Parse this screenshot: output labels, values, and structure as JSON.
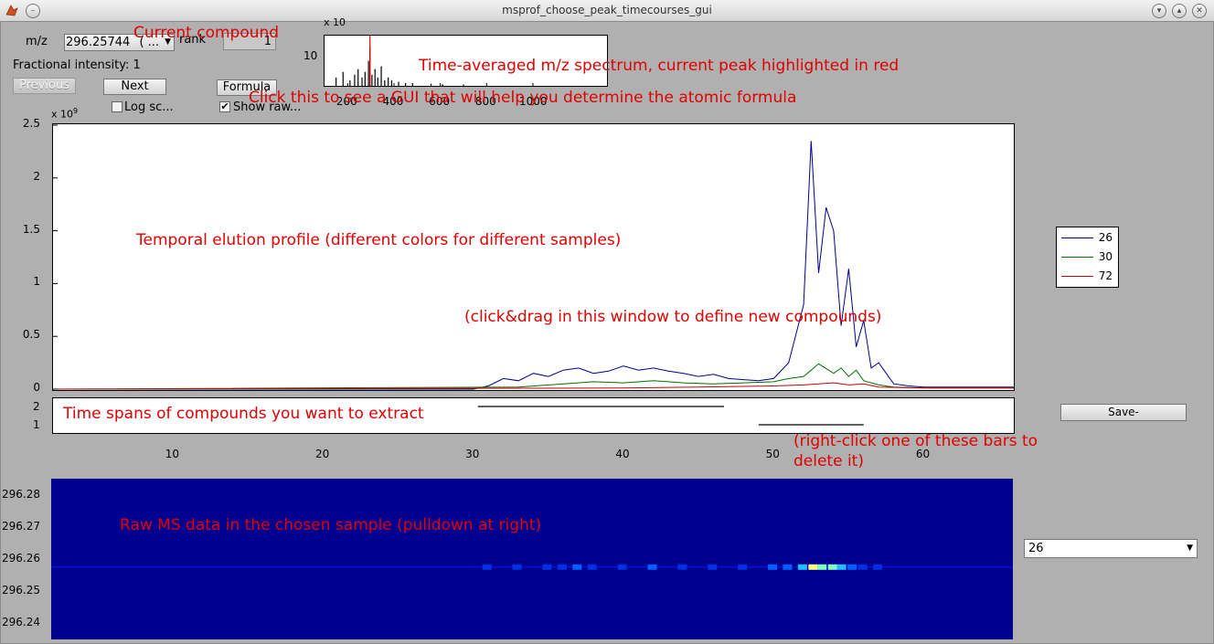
{
  "window": {
    "title": "msprof_choose_peak_timecourses_gui"
  },
  "controls": {
    "mz_label": "m/z",
    "mz_value": "296.25744",
    "mz_suffix": "( ...",
    "rank_label": "rank",
    "rank_value": "1",
    "fractional_intensity": "Fractional intensity: 1",
    "previous_label": "Previous",
    "next_label": "Next",
    "formula_label": "Formula",
    "log_scale_label": "Log sc...",
    "log_scale_checked": false,
    "show_raw_label": "Show raw...",
    "show_raw_checked": true,
    "save_label": "Save-",
    "sample_select": "26"
  },
  "annotations": {
    "current_compound": "Current compound",
    "spectrum": "Time-averaged m/z spectrum, current peak highlighted in red",
    "formula": "Click this to see a GUI that will help you determine the atomic formula",
    "profile": "Temporal elution profile (different colors for different samples)",
    "drag": "(click&drag in this window to define new compounds)",
    "spans": "Time spans of compounds you want to extract",
    "delete_1": "(right-click one of these bars to",
    "delete_2": "delete it)",
    "raw": "Raw MS data in the chosen sample (pulldown at right)"
  },
  "colors": {
    "sample_26": "#00008b",
    "sample_30": "#007000",
    "sample_72": "#c80000",
    "annotation": "#e00000",
    "raw_background": "#00008f"
  },
  "chart_data": [
    {
      "type": "bar",
      "name": "spectrum_inset",
      "y_exponent": "x 10",
      "ylim": [
        0,
        18
      ],
      "yticks": [
        "10"
      ],
      "xlim": [
        100,
        1320
      ],
      "xticks": [
        "200",
        "400",
        "600",
        "800",
        "1000"
      ],
      "highlight_mz": 296.25744,
      "peaks": [
        [
          150,
          3
        ],
        [
          180,
          5
        ],
        [
          210,
          2
        ],
        [
          230,
          4
        ],
        [
          245,
          6
        ],
        [
          262,
          3
        ],
        [
          275,
          5
        ],
        [
          290,
          9
        ],
        [
          296,
          14
        ],
        [
          305,
          4
        ],
        [
          318,
          6
        ],
        [
          330,
          3
        ],
        [
          345,
          7
        ],
        [
          360,
          2
        ],
        [
          375,
          3
        ],
        [
          390,
          2
        ],
        [
          420,
          1.5
        ],
        [
          450,
          1
        ],
        [
          480,
          1
        ],
        [
          560,
          0.8
        ],
        [
          610,
          0.6
        ],
        [
          700,
          0.5
        ]
      ]
    },
    {
      "type": "line",
      "name": "temporal_elution_profile",
      "y_exponent": "x 10",
      "y_exponent_power": "9",
      "xlim": [
        2,
        66
      ],
      "ylim": [
        0,
        2.5
      ],
      "yticks": [
        "0",
        "0.5",
        "1",
        "1.5",
        "2",
        "2.5"
      ],
      "xticks": [
        "10",
        "20",
        "30",
        "40",
        "50",
        "60"
      ],
      "legend": "right",
      "series": [
        {
          "name": "26",
          "x": [
            2,
            30,
            31,
            32,
            33,
            34,
            35,
            36,
            37,
            38,
            39,
            40,
            41,
            42,
            43,
            44,
            45,
            46,
            47,
            48,
            49,
            50,
            51,
            52,
            52.5,
            53,
            53.5,
            54,
            54.5,
            55,
            55.5,
            56,
            56.5,
            57,
            58,
            59,
            60,
            62,
            64,
            66
          ],
          "values": [
            0,
            0,
            0.03,
            0.1,
            0.08,
            0.15,
            0.12,
            0.18,
            0.2,
            0.15,
            0.17,
            0.22,
            0.18,
            0.2,
            0.17,
            0.15,
            0.12,
            0.14,
            0.1,
            0.09,
            0.08,
            0.1,
            0.25,
            0.8,
            2.35,
            1.1,
            1.72,
            1.5,
            0.6,
            1.14,
            0.4,
            0.65,
            0.2,
            0.25,
            0.05,
            0.03,
            0.02,
            0.02,
            0.02,
            0.02
          ]
        },
        {
          "name": "30",
          "x": [
            2,
            33,
            36,
            38,
            40,
            42,
            44,
            46,
            48,
            50,
            51,
            52,
            53,
            54,
            54.5,
            55,
            55.5,
            56,
            57,
            58,
            60,
            66
          ],
          "values": [
            0,
            0.02,
            0.05,
            0.07,
            0.06,
            0.08,
            0.06,
            0.05,
            0.06,
            0.07,
            0.1,
            0.12,
            0.24,
            0.15,
            0.2,
            0.12,
            0.18,
            0.08,
            0.04,
            0.02,
            0.01,
            0.01
          ]
        },
        {
          "name": "72",
          "x": [
            2,
            40,
            45,
            50,
            52,
            53,
            54,
            55,
            56,
            57,
            60,
            66
          ],
          "values": [
            0,
            0.01,
            0.02,
            0.03,
            0.04,
            0.05,
            0.06,
            0.04,
            0.05,
            0.02,
            0.01,
            0.01
          ]
        }
      ]
    },
    {
      "type": "bar",
      "name": "compound_time_spans",
      "yticks": [
        "2",
        "1"
      ],
      "spans": [
        {
          "row": 2,
          "start": 30.3,
          "end": 46.7
        },
        {
          "row": 1,
          "start": 49.0,
          "end": 56.0
        }
      ]
    },
    {
      "type": "heatmap",
      "name": "raw_ms_data",
      "ylim": [
        296.235,
        296.285
      ],
      "yticks": [
        "296.28",
        "296.27",
        "296.26",
        "296.25",
        "296.24"
      ],
      "xlim": [
        2,
        66
      ],
      "signal_mz": 296.2575,
      "signal_points": [
        [
          31,
          0.2
        ],
        [
          33,
          0.3
        ],
        [
          35,
          0.3
        ],
        [
          36,
          0.25
        ],
        [
          37,
          0.4
        ],
        [
          38,
          0.3
        ],
        [
          40,
          0.3
        ],
        [
          42,
          0.35
        ],
        [
          44,
          0.3
        ],
        [
          46,
          0.3
        ],
        [
          48,
          0.3
        ],
        [
          50,
          0.35
        ],
        [
          51,
          0.5
        ],
        [
          52,
          0.6
        ],
        [
          52.7,
          0.95
        ],
        [
          53.3,
          0.8
        ],
        [
          54,
          0.75
        ],
        [
          54.6,
          0.6
        ],
        [
          55.3,
          0.5
        ],
        [
          56,
          0.3
        ],
        [
          57,
          0.2
        ]
      ]
    }
  ]
}
